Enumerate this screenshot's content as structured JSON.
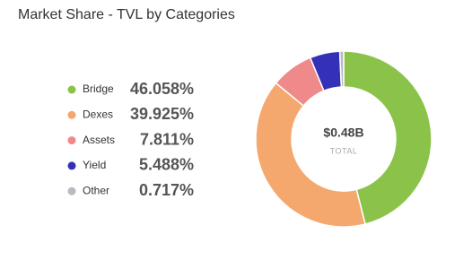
{
  "chart_data": {
    "type": "pie",
    "title": "Market Share - TVL by Categories",
    "categories": [
      "Bridge",
      "Dexes",
      "Assets",
      "Yield",
      "Other"
    ],
    "values": [
      46.058,
      39.925,
      7.811,
      5.488,
      0.717
    ],
    "value_labels": [
      "46.058%",
      "39.925%",
      "7.811%",
      "5.488%",
      "0.717%"
    ],
    "colors": [
      "#8bc34a",
      "#f4a86e",
      "#f08a8a",
      "#3430b8",
      "#b9b9c2"
    ],
    "center_value": "$0.48B",
    "center_label": "TOTAL"
  }
}
